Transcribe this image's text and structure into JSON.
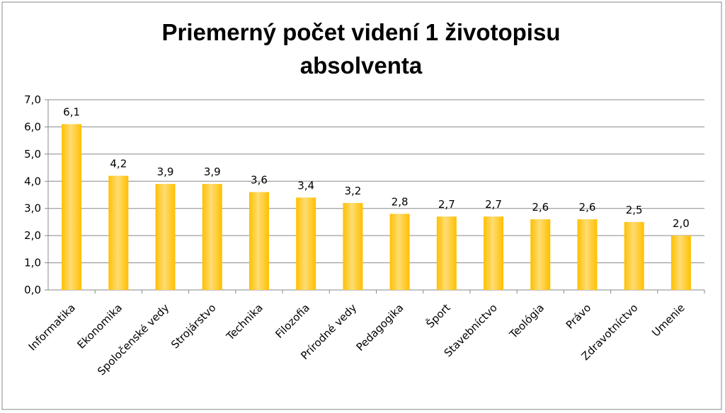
{
  "chart_data": {
    "type": "bar",
    "title": "Priemerný počet videní 1 životopisu absolventa",
    "categories": [
      "Informatika",
      "Ekonomika",
      "Spoločenské vedy",
      "Strojárstvo",
      "Technika",
      "Filozofia",
      "Prírodné vedy",
      "Pedagogika",
      "Šport",
      "Stavebníctvo",
      "Teológia",
      "Právo",
      "Zdravotníctvo",
      "Umenie"
    ],
    "values": [
      6.1,
      4.2,
      3.9,
      3.9,
      3.6,
      3.4,
      3.2,
      2.8,
      2.7,
      2.7,
      2.6,
      2.6,
      2.5,
      2.0
    ],
    "value_labels": [
      "6,1",
      "4,2",
      "3,9",
      "3,9",
      "3,6",
      "3,4",
      "3,2",
      "2,8",
      "2,7",
      "2,7",
      "2,6",
      "2,6",
      "2,5",
      "2,0"
    ],
    "color": "#ffc000",
    "ylim": [
      0,
      7
    ],
    "yticks": [
      {
        "value": 0,
        "label": "0,0"
      },
      {
        "value": 1,
        "label": "1,0"
      },
      {
        "value": 2,
        "label": "2,0"
      },
      {
        "value": 3,
        "label": "3,0"
      },
      {
        "value": 4,
        "label": "4,0"
      },
      {
        "value": 5,
        "label": "5,0"
      },
      {
        "value": 6,
        "label": "6,0"
      },
      {
        "value": 7,
        "label": "7,0"
      }
    ],
    "grid": true
  }
}
